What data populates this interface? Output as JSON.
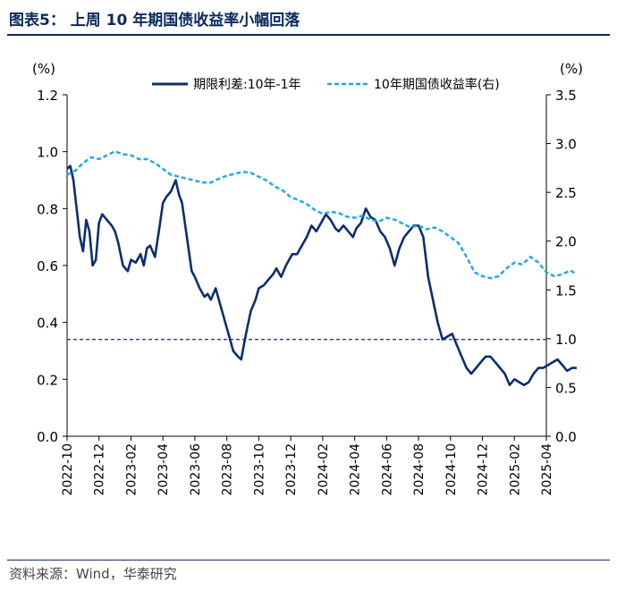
{
  "header": {
    "title": "图表5：  上周 10 年期国债收益率小幅回落"
  },
  "footer": {
    "source": "资料来源：Wind，华泰研究"
  },
  "colors": {
    "spread": "#0d2e6e",
    "yield": "#1aa8e8",
    "title": "#0b2a5c",
    "refline": "#0d2e6e"
  },
  "chart_data": {
    "type": "line",
    "title": "上周 10 年期国债收益率小幅回落",
    "left_axis": {
      "unit": "(%)",
      "range": [
        0.0,
        1.2
      ],
      "ticks": [
        "0.0",
        "0.2",
        "0.4",
        "0.6",
        "0.8",
        "1.0",
        "1.2"
      ]
    },
    "right_axis": {
      "unit": "(%)",
      "range": [
        0.0,
        3.5
      ],
      "ticks": [
        "0.0",
        "0.5",
        "1.0",
        "1.5",
        "2.0",
        "2.5",
        "3.0",
        "3.5"
      ]
    },
    "x_ticks": [
      "2022-10",
      "2022-12",
      "2023-02",
      "2023-04",
      "2023-06",
      "2023-08",
      "2023-10",
      "2023-12",
      "2024-02",
      "2024-04",
      "2024-06",
      "2024-08",
      "2024-10",
      "2024-12",
      "2025-02",
      "2025-04"
    ],
    "legend": {
      "position": "top",
      "entries": [
        "期限利差:10年-1年",
        "10年期国债收益率(右)"
      ]
    },
    "reference_line": {
      "axis": "left",
      "value": 0.34,
      "style": "dashed"
    },
    "series": [
      {
        "name": "期限利差:10年-1年",
        "axis": "left",
        "style": "solid",
        "t": [
          0,
          0.2,
          0.4,
          0.6,
          0.8,
          1.0,
          1.2,
          1.4,
          1.6,
          1.8,
          2.0,
          2.2,
          2.5,
          2.8,
          3.0,
          3.2,
          3.5,
          3.8,
          4.0,
          4.3,
          4.6,
          4.8,
          5.0,
          5.2,
          5.5,
          5.8,
          6.0,
          6.2,
          6.5,
          6.8,
          7.0,
          7.2,
          7.5,
          7.8,
          8.0,
          8.3,
          8.6,
          8.8,
          9.0,
          9.3,
          9.6,
          9.9,
          10.1,
          10.4,
          10.7,
          10.9,
          11.2,
          11.5,
          11.8,
          12.0,
          12.3,
          12.6,
          12.9,
          13.1,
          13.4,
          13.7,
          13.9,
          14.1,
          14.4,
          14.7,
          15.0,
          15.3,
          15.6,
          15.9,
          16.2,
          16.5,
          16.8,
          17.0,
          17.3,
          17.6,
          17.9,
          18.1,
          18.4,
          18.7,
          19.0,
          19.3,
          19.6,
          19.9,
          20.2,
          20.5,
          20.8,
          21.1,
          21.4,
          21.7,
          22.0,
          22.3,
          22.6,
          22.9,
          23.2,
          23.5,
          23.8,
          24.1,
          24.4,
          24.7,
          25.0,
          25.3,
          25.6,
          25.9,
          26.2,
          26.5,
          26.8,
          27.1,
          27.4,
          27.7,
          28.0,
          28.3,
          28.6,
          28.9,
          29.2,
          29.5,
          29.8,
          30.1,
          30.4,
          30.7,
          31.0,
          31.3,
          31.6,
          31.9
        ],
        "values": [
          0.94,
          0.95,
          0.9,
          0.8,
          0.7,
          0.65,
          0.76,
          0.72,
          0.6,
          0.62,
          0.75,
          0.78,
          0.76,
          0.74,
          0.72,
          0.68,
          0.6,
          0.58,
          0.62,
          0.61,
          0.64,
          0.6,
          0.66,
          0.67,
          0.63,
          0.74,
          0.82,
          0.84,
          0.86,
          0.9,
          0.85,
          0.82,
          0.7,
          0.58,
          0.56,
          0.52,
          0.49,
          0.5,
          0.48,
          0.52,
          0.46,
          0.4,
          0.36,
          0.3,
          0.28,
          0.27,
          0.36,
          0.44,
          0.48,
          0.52,
          0.53,
          0.55,
          0.57,
          0.59,
          0.56,
          0.6,
          0.62,
          0.64,
          0.64,
          0.67,
          0.7,
          0.74,
          0.72,
          0.75,
          0.78,
          0.76,
          0.73,
          0.72,
          0.74,
          0.72,
          0.7,
          0.73,
          0.75,
          0.8,
          0.77,
          0.76,
          0.72,
          0.7,
          0.66,
          0.6,
          0.66,
          0.7,
          0.72,
          0.74,
          0.74,
          0.7,
          0.56,
          0.48,
          0.4,
          0.34,
          0.35,
          0.36,
          0.32,
          0.28,
          0.24,
          0.22,
          0.24,
          0.26,
          0.28,
          0.28,
          0.26,
          0.24,
          0.22,
          0.18,
          0.2,
          0.19,
          0.18,
          0.19,
          0.22,
          0.24,
          0.24,
          0.25,
          0.26,
          0.27,
          0.25,
          0.23,
          0.24,
          0.24
        ]
      },
      {
        "name": "10年期国债收益率(右)",
        "axis": "right",
        "style": "dashed",
        "t": [
          0,
          0.5,
          1.0,
          1.5,
          2.0,
          2.5,
          3.0,
          3.5,
          4.0,
          4.5,
          5.0,
          5.5,
          6.0,
          6.5,
          7.0,
          7.5,
          8.0,
          8.5,
          9.0,
          9.5,
          10.0,
          10.5,
          11.0,
          11.5,
          12.0,
          12.5,
          13.0,
          13.5,
          14.0,
          14.5,
          15.0,
          15.5,
          16.0,
          16.5,
          17.0,
          17.5,
          18.0,
          18.5,
          19.0,
          19.5,
          20.0,
          20.5,
          21.0,
          21.5,
          22.0,
          22.5,
          23.0,
          23.5,
          24.0,
          24.5,
          25.0,
          25.5,
          26.0,
          26.5,
          27.0,
          27.5,
          28.0,
          28.5,
          29.0,
          29.5,
          30.0,
          30.5,
          31.0,
          31.5,
          31.9
        ],
        "values": [
          2.68,
          2.72,
          2.8,
          2.86,
          2.84,
          2.88,
          2.92,
          2.89,
          2.88,
          2.84,
          2.84,
          2.8,
          2.74,
          2.68,
          2.66,
          2.64,
          2.62,
          2.6,
          2.6,
          2.64,
          2.67,
          2.69,
          2.71,
          2.7,
          2.66,
          2.62,
          2.56,
          2.52,
          2.45,
          2.42,
          2.38,
          2.32,
          2.28,
          2.3,
          2.29,
          2.25,
          2.24,
          2.26,
          2.22,
          2.2,
          2.24,
          2.22,
          2.18,
          2.14,
          2.16,
          2.12,
          2.14,
          2.1,
          2.04,
          1.98,
          1.84,
          1.68,
          1.64,
          1.62,
          1.64,
          1.72,
          1.78,
          1.76,
          1.84,
          1.78,
          1.68,
          1.64,
          1.66,
          1.7,
          1.66
        ]
      }
    ]
  }
}
